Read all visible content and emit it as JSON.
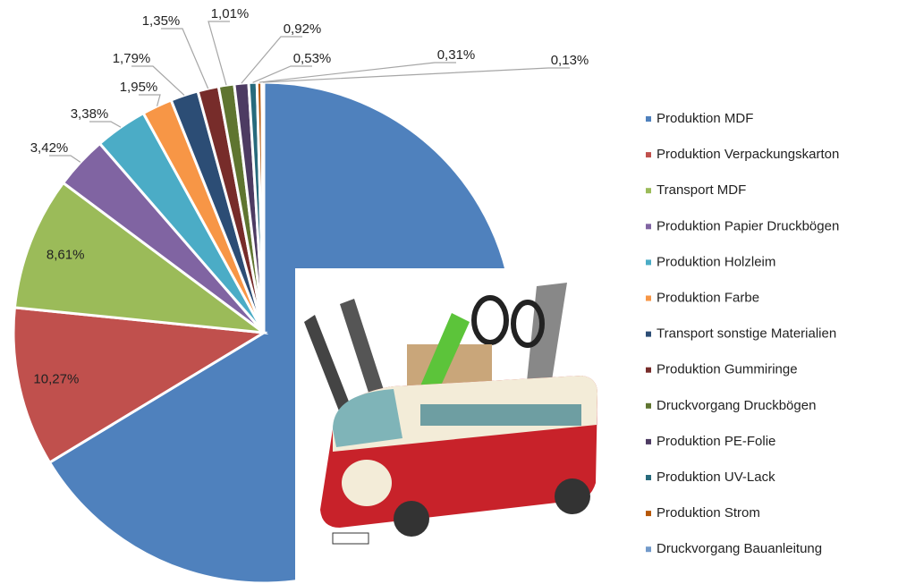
{
  "chart_data": {
    "type": "pie",
    "categories": [
      "Produktion MDF",
      "Produktion Verpackungskarton",
      "Transport MDF",
      "Produktion Papier Druckbögen",
      "Produktion Holzleim",
      "Produktion Farbe",
      "Transport sonstige Materialien",
      "Produktion Gummiringe",
      "Druckvorgang Druckbögen",
      "Produktion PE-Folie",
      "Produktion UV-Lack",
      "Produktion Strom",
      "Druckvorgang Bauanleitung"
    ],
    "values": [
      66.33,
      10.27,
      8.61,
      3.42,
      3.38,
      1.95,
      1.79,
      1.35,
      1.01,
      0.92,
      0.53,
      0.31,
      0.13
    ],
    "value_labels": [
      null,
      "10,27%",
      "8,61%",
      "3,42%",
      "3,38%",
      "1,95%",
      "1,79%",
      "1,35%",
      "1,01%",
      "0,92%",
      "0,53%",
      "0,31%",
      "0,13%"
    ],
    "colors": [
      "#4f81bd",
      "#c0504d",
      "#9bbb59",
      "#8064a2",
      "#4bacc6",
      "#f79646",
      "#2c4d75",
      "#772c2a",
      "#5f7530",
      "#4d3b62",
      "#276a7c",
      "#b65708",
      "#729aca"
    ],
    "legend": "right"
  }
}
